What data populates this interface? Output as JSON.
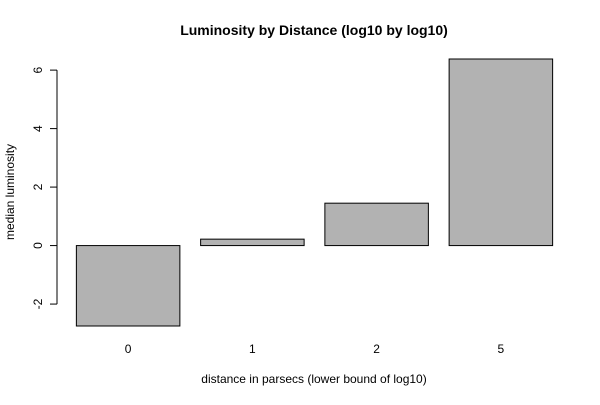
{
  "chart_data": {
    "type": "bar",
    "title": "Luminosity by Distance (log10 by log10)",
    "xlabel": "distance in parsecs (lower bound of log10)",
    "ylabel": "median luminosity",
    "categories": [
      "0",
      "1",
      "2",
      "5"
    ],
    "values": [
      -2.75,
      0.22,
      1.45,
      6.38
    ],
    "yticks": [
      -2,
      0,
      2,
      4,
      6
    ],
    "ylim": [
      -2.75,
      6.38
    ],
    "bar_color": "#b2b2b2",
    "bar_stroke": "#000000",
    "grid": false
  }
}
